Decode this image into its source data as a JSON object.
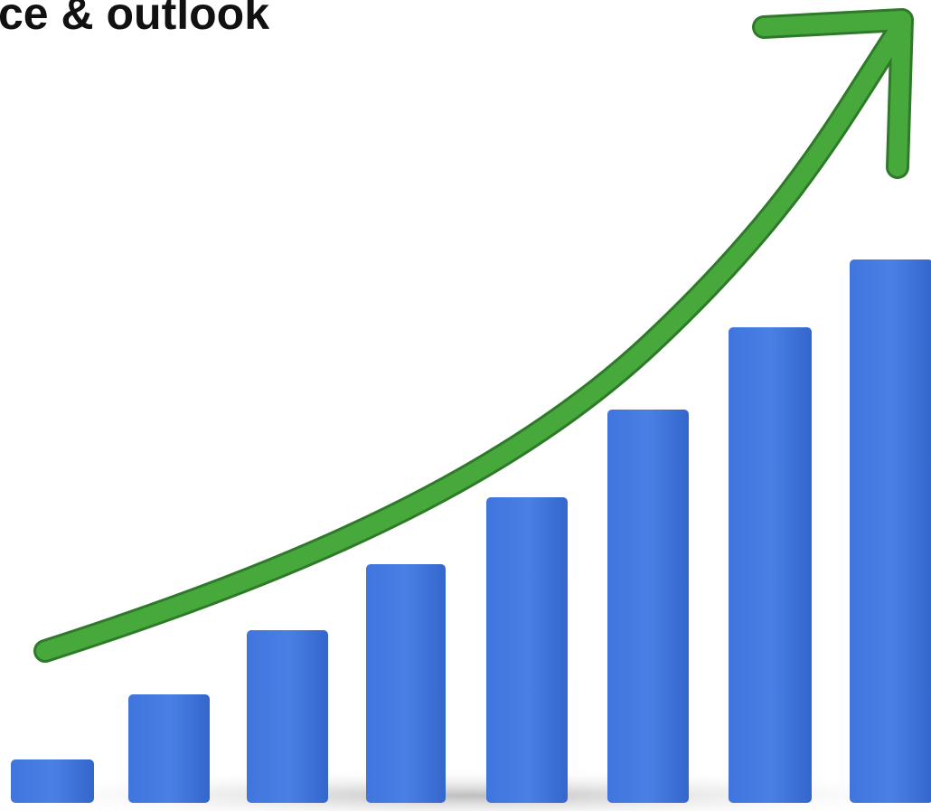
{
  "header": {
    "title": "ce & outlook"
  }
}
